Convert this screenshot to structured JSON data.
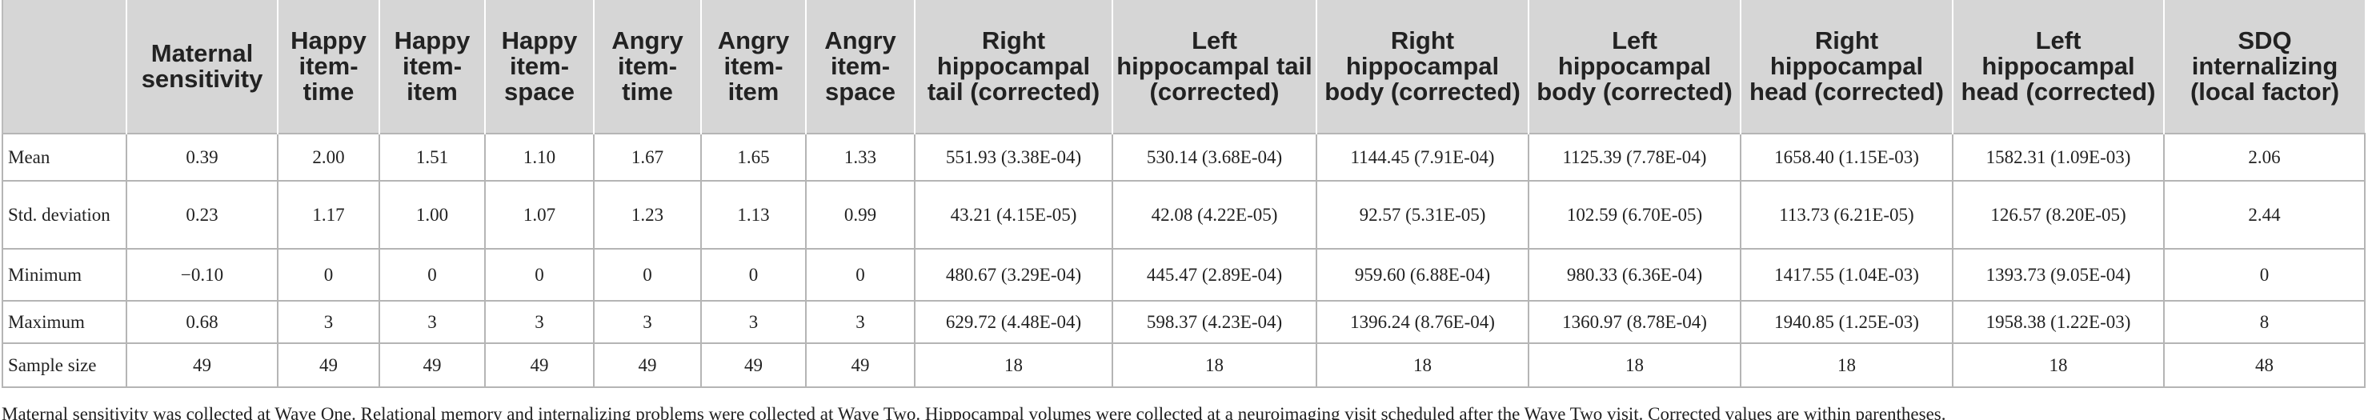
{
  "table": {
    "header": [
      "Maternal sensitivity",
      "Happy item-time",
      "Happy item-item",
      "Happy item-space",
      "Angry item-time",
      "Angry item-item",
      "Angry item-space",
      "Right hippocampal tail (corrected)",
      "Left hippocampal tail (corrected)",
      "Right hippocampal body (corrected)",
      "Left hippocampal body (corrected)",
      "Right hippocampal head (corrected)",
      "Left hippocampal head (corrected)",
      "SDQ internalizing (local factor)"
    ],
    "rows": [
      {
        "label": "Mean",
        "cells": [
          "0.39",
          "2.00",
          "1.51",
          "1.10",
          "1.67",
          "1.65",
          "1.33",
          "551.93 (3.38E-04)",
          "530.14 (3.68E-04)",
          "1144.45 (7.91E-04)",
          "1125.39 (7.78E-04)",
          "1658.40 (1.15E-03)",
          "1582.31 (1.09E-03)",
          "2.06"
        ]
      },
      {
        "label": "Std. deviation",
        "cells": [
          "0.23",
          "1.17",
          "1.00",
          "1.07",
          "1.23",
          "1.13",
          "0.99",
          "43.21 (4.15E-05)",
          "42.08 (4.22E-05)",
          "92.57 (5.31E-05)",
          "102.59 (6.70E-05)",
          "113.73 (6.21E-05)",
          "126.57 (8.20E-05)",
          "2.44"
        ]
      },
      {
        "label": "Minimum",
        "cells": [
          "−0.10",
          "0",
          "0",
          "0",
          "0",
          "0",
          "0",
          "480.67 (3.29E-04)",
          "445.47 (2.89E-04)",
          "959.60 (6.88E-04)",
          "980.33 (6.36E-04)",
          "1417.55 (1.04E-03)",
          "1393.73 (9.05E-04)",
          "0"
        ]
      },
      {
        "label": "Maximum",
        "cells": [
          "0.68",
          "3",
          "3",
          "3",
          "3",
          "3",
          "3",
          "629.72 (4.48E-04)",
          "598.37 (4.23E-04)",
          "1396.24 (8.76E-04)",
          "1360.97 (8.78E-04)",
          "1940.85 (1.25E-03)",
          "1958.38 (1.22E-03)",
          "8"
        ]
      },
      {
        "label": "Sample size",
        "cells": [
          "49",
          "49",
          "49",
          "49",
          "49",
          "49",
          "49",
          "18",
          "18",
          "18",
          "18",
          "18",
          "18",
          "48"
        ]
      }
    ],
    "footnote": "Maternal sensitivity was collected at Wave One. Relational memory and internalizing problems were collected at Wave Two. Hippocampal volumes were collected at a neuroimaging visit scheduled after the Wave Two visit. Corrected values are within parentheses."
  }
}
